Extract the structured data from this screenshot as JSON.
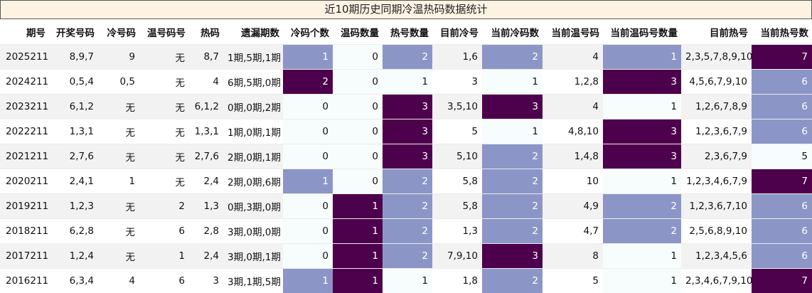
{
  "title": "近10期历史同期冷温热码数据统计",
  "headers": [
    "期号",
    "开奖号码",
    "冷号码",
    "温号码号",
    "热码",
    "遗漏期数",
    "冷码个数",
    "温码数量",
    "热号数量",
    "目前冷号",
    "当前冷码数",
    "当前温号码",
    "当前温码号数量",
    "目前热号",
    "当前热号数"
  ],
  "colors": {
    "low": "#f7fcfd",
    "mid": "#8c96c6",
    "high": "#4d004b"
  },
  "rows": [
    [
      "2025211",
      "8,9,7",
      "9",
      "无",
      "8,7",
      "1期,5期,1期",
      "1",
      "0",
      "2",
      "1,6",
      "2",
      "4",
      "1",
      "2,3,5,7,8,9,10",
      "7"
    ],
    [
      "2024211",
      "0,5,4",
      "0,5",
      "无",
      "4",
      "6期,5期,0期",
      "2",
      "0",
      "1",
      "3",
      "1",
      "1,2,8",
      "3",
      "4,5,6,7,9,10",
      "6"
    ],
    [
      "2023211",
      "6,1,2",
      "无",
      "无",
      "6,1,2",
      "0期,0期,2期",
      "0",
      "0",
      "3",
      "3,5,10",
      "3",
      "4",
      "1",
      "1,2,6,7,8,9",
      "6"
    ],
    [
      "2022211",
      "1,3,1",
      "无",
      "无",
      "1,3,1",
      "1期,0期,1期",
      "0",
      "0",
      "3",
      "5",
      "1",
      "4,8,10",
      "3",
      "1,2,3,6,7,9",
      "6"
    ],
    [
      "2021211",
      "2,7,6",
      "无",
      "无",
      "2,7,6",
      "2期,0期,1期",
      "0",
      "0",
      "3",
      "5,10",
      "2",
      "1,4,8",
      "3",
      "2,3,6,7,9",
      "5"
    ],
    [
      "2020211",
      "2,4,1",
      "1",
      "无",
      "2,4",
      "2期,0期,6期",
      "1",
      "0",
      "2",
      "5,8",
      "2",
      "10",
      "1",
      "1,2,3,4,6,7,9",
      "7"
    ],
    [
      "2019211",
      "1,2,3",
      "无",
      "2",
      "1,3",
      "0期,3期,0期",
      "0",
      "1",
      "2",
      "5,8",
      "2",
      "4,9",
      "2",
      "1,2,3,6,7,10",
      "6"
    ],
    [
      "2018211",
      "6,2,8",
      "无",
      "6",
      "2,8",
      "3期,0期,0期",
      "0",
      "1",
      "2",
      "1,3",
      "2",
      "4,7",
      "2",
      "2,5,6,8,9,10",
      "6"
    ],
    [
      "2017211",
      "1,2,4",
      "无",
      "1",
      "2,4",
      "3期,0期,1期",
      "0",
      "1",
      "2",
      "7,9,10",
      "3",
      "8",
      "1",
      "1,2,3,4,5,6",
      "6"
    ],
    [
      "2016211",
      "6,3,4",
      "4",
      "6",
      "3",
      "3期,1期,5期",
      "1",
      "1",
      "1",
      "1,8",
      "2",
      "5",
      "1",
      "2,3,4,6,7,9,10",
      "7"
    ]
  ],
  "levels": [
    [
      1,
      0,
      1,
      1,
      1,
      2
    ],
    [
      2,
      0,
      0,
      0,
      2,
      1
    ],
    [
      0,
      0,
      2,
      2,
      0,
      1
    ],
    [
      0,
      0,
      2,
      0,
      2,
      1
    ],
    [
      0,
      0,
      2,
      1,
      2,
      0
    ],
    [
      1,
      0,
      1,
      1,
      0,
      2
    ],
    [
      0,
      2,
      1,
      1,
      1,
      1
    ],
    [
      0,
      2,
      1,
      1,
      1,
      1
    ],
    [
      0,
      2,
      1,
      2,
      0,
      1
    ],
    [
      1,
      2,
      0,
      1,
      0,
      2
    ]
  ]
}
